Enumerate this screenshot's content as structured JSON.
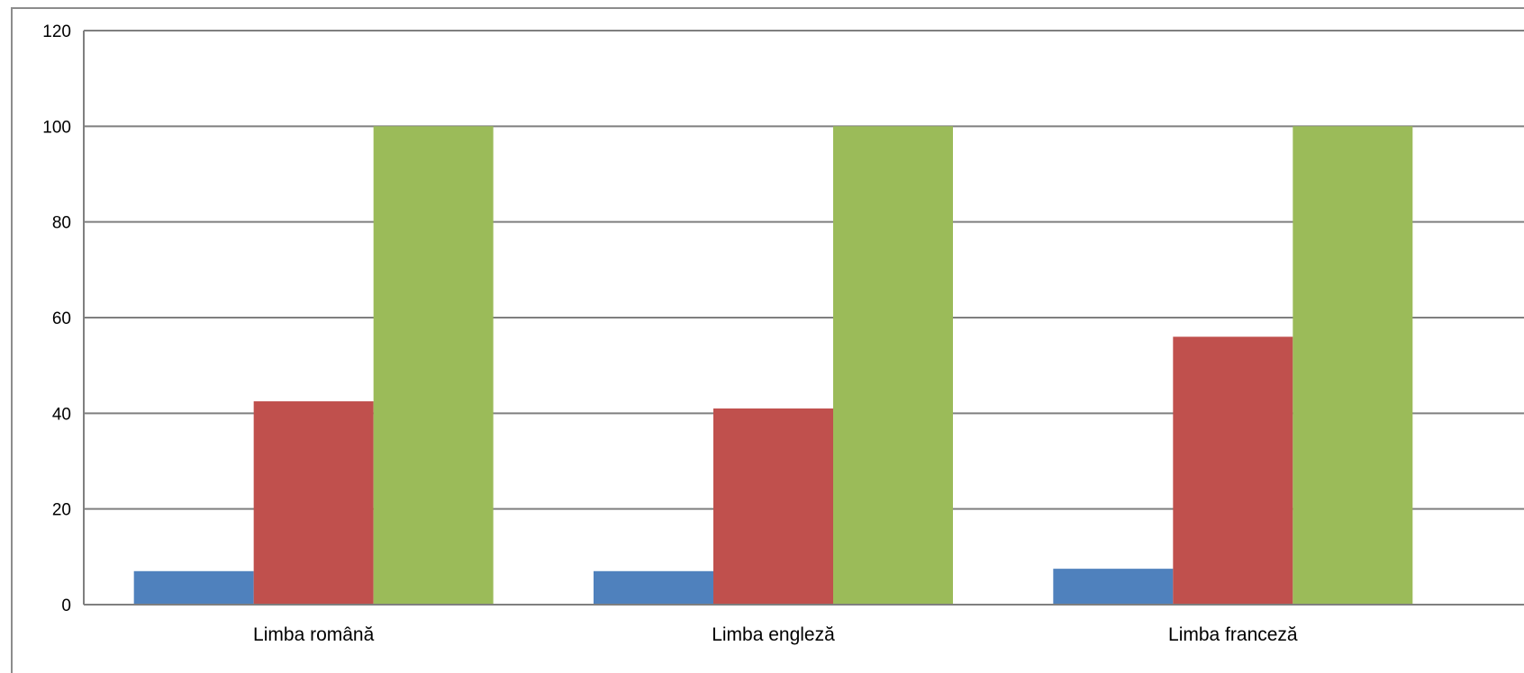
{
  "chart_data": {
    "type": "bar",
    "categories": [
      "Limba română",
      "Limba engleză",
      "Limba franceză"
    ],
    "series": [
      {
        "values": [
          7,
          7,
          7.5
        ],
        "color": "#4F81BD"
      },
      {
        "values": [
          42.5,
          41,
          56
        ],
        "color": "#C0504D"
      },
      {
        "values": [
          100,
          100,
          100
        ],
        "color": "#9BBB59"
      }
    ],
    "ylim": [
      0,
      120
    ],
    "yticks": [
      0,
      20,
      40,
      60,
      80,
      100,
      120
    ],
    "grid": true,
    "legend": "none"
  }
}
